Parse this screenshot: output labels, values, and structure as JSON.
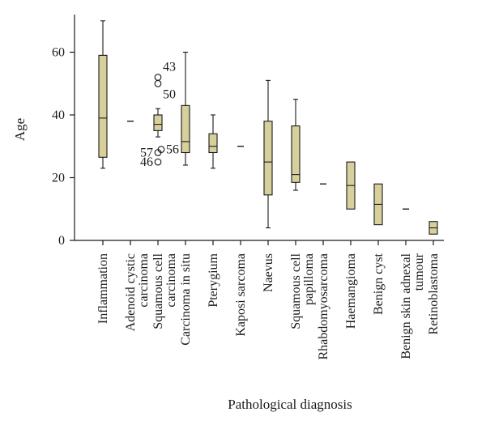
{
  "chart_data": {
    "type": "box",
    "xlabel": "Pathological diagnosis",
    "ylabel": "Age",
    "ylim": [
      0,
      72
    ],
    "yticks": [
      0,
      20,
      40,
      60
    ],
    "grid": false,
    "box_color": "#d8d09c",
    "categories": [
      {
        "label": [
          "Inflammation"
        ],
        "whisker_low": 23,
        "q1": 26.5,
        "median": 39,
        "q3": 59,
        "whisker_high": 70,
        "outliers": []
      },
      {
        "label": [
          "Adenoid cystic",
          "carcinoma"
        ],
        "whisker_low": 38,
        "q1": 38,
        "median": 38,
        "q3": 38,
        "whisker_high": 38,
        "outliers": []
      },
      {
        "label": [
          "Squamous cell",
          "carcinoma"
        ],
        "whisker_low": 33,
        "q1": 35,
        "median": 37,
        "q3": 40,
        "whisker_high": 42,
        "outliers": [
          {
            "value": 52,
            "id": "43"
          },
          {
            "value": 50,
            "id": "50"
          },
          {
            "value": 28,
            "id": "57"
          },
          {
            "value": 25,
            "id": "46"
          }
        ]
      },
      {
        "label": [
          "Carcinoma in situ"
        ],
        "whisker_low": 24,
        "q1": 28,
        "median": 31.5,
        "q3": 43,
        "whisker_high": 60,
        "outliers": [
          {
            "value": 29,
            "id": "56"
          }
        ]
      },
      {
        "label": [
          "Pterygium"
        ],
        "whisker_low": 23,
        "q1": 28,
        "median": 30,
        "q3": 34,
        "whisker_high": 40,
        "outliers": []
      },
      {
        "label": [
          "Kaposi sarcoma"
        ],
        "whisker_low": 30,
        "q1": 30,
        "median": 30,
        "q3": 30,
        "whisker_high": 30,
        "outliers": []
      },
      {
        "label": [
          "Naevus"
        ],
        "whisker_low": 4,
        "q1": 14.5,
        "median": 25,
        "q3": 38,
        "whisker_high": 51,
        "outliers": []
      },
      {
        "label": [
          "Squamous cell",
          "papilloma"
        ],
        "whisker_low": 16,
        "q1": 18.5,
        "median": 21,
        "q3": 36.5,
        "whisker_high": 45,
        "outliers": []
      },
      {
        "label": [
          "Rhabdomyosarcoma"
        ],
        "whisker_low": 18,
        "q1": 18,
        "median": 18,
        "q3": 18,
        "whisker_high": 18,
        "outliers": []
      },
      {
        "label": [
          "Haemangioma"
        ],
        "whisker_low": 10,
        "q1": 10,
        "median": 17.5,
        "q3": 25,
        "whisker_high": 25,
        "outliers": []
      },
      {
        "label": [
          "Benign cyst"
        ],
        "whisker_low": 5,
        "q1": 5,
        "median": 11.5,
        "q3": 18,
        "whisker_high": 18,
        "outliers": []
      },
      {
        "label": [
          "Benign skin adnexal",
          "tumour"
        ],
        "whisker_low": 10,
        "q1": 10,
        "median": 10,
        "q3": 10,
        "whisker_high": 10,
        "outliers": []
      },
      {
        "label": [
          "Retinoblastoma"
        ],
        "whisker_low": 2,
        "q1": 2,
        "median": 4,
        "q3": 6,
        "whisker_high": 6,
        "outliers": []
      }
    ]
  }
}
